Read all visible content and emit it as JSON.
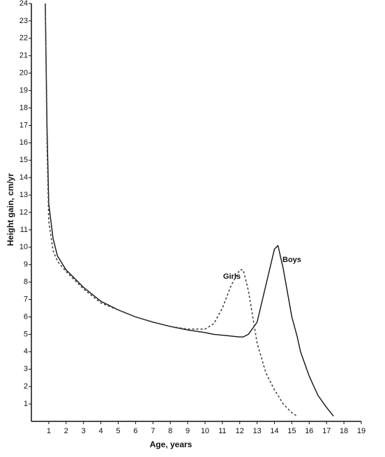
{
  "chart_data": {
    "type": "line",
    "x_label": "Age, years",
    "y_label": "Height gain, cm/yr",
    "x": [
      0.8,
      0.9,
      1,
      1.25,
      1.5,
      2,
      2.5,
      3,
      4,
      5,
      6,
      7,
      8,
      9,
      10,
      10.5,
      11,
      11.5,
      12,
      12.2,
      12.5,
      13,
      13.5,
      14,
      14.2,
      14.5,
      15,
      15.3,
      15.5,
      16,
      16.5,
      17,
      17.4
    ],
    "series": [
      {
        "name": "Boys",
        "color": "#111111",
        "dash": false,
        "values": [
          24,
          17,
          12.5,
          10.5,
          9.5,
          8.7,
          8.2,
          7.7,
          6.9,
          6.4,
          6.0,
          5.7,
          5.45,
          5.25,
          5.1,
          5.0,
          4.95,
          4.9,
          4.85,
          4.85,
          5.0,
          5.7,
          7.8,
          9.9,
          10.1,
          8.8,
          6.0,
          4.9,
          4.0,
          2.6,
          1.5,
          0.8,
          0.3
        ]
      },
      {
        "name": "Girls",
        "color": "#444444",
        "dash": true,
        "values": [
          24,
          16,
          11.5,
          9.8,
          9.2,
          8.6,
          8.1,
          7.6,
          6.8,
          6.4,
          6.0,
          5.7,
          5.45,
          5.3,
          5.3,
          5.6,
          6.5,
          7.8,
          8.7,
          8.7,
          7.5,
          4.5,
          2.8,
          1.8,
          1.5,
          1.0,
          0.5,
          0.3,
          null,
          null,
          null,
          null,
          null
        ]
      }
    ],
    "xlim": [
      0,
      19
    ],
    "xticks": [
      1,
      2,
      3,
      4,
      5,
      6,
      7,
      8,
      9,
      10,
      11,
      12,
      13,
      14,
      15,
      16,
      17,
      18,
      19
    ],
    "ylim": [
      0,
      24
    ],
    "yticks": [
      1,
      2,
      3,
      4,
      5,
      6,
      7,
      8,
      9,
      10,
      11,
      12,
      13,
      14,
      15,
      16,
      17,
      18,
      19,
      20,
      21,
      22,
      23,
      24
    ]
  }
}
